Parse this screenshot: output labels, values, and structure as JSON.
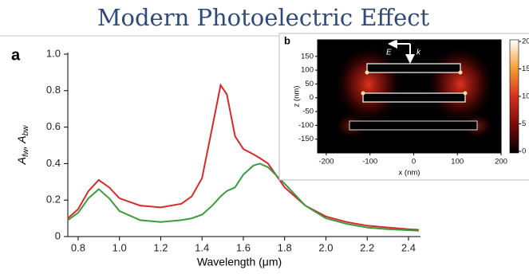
{
  "title": "Modern Photoelectric Effect",
  "chart_data": [
    {
      "type": "line",
      "panel": "a",
      "xlabel": "Wavelength (μm)",
      "ylabel": [
        "A",
        "fw",
        ", A",
        "bw"
      ],
      "x": [
        0.75,
        0.8,
        0.85,
        0.9,
        0.95,
        1.0,
        1.1,
        1.2,
        1.3,
        1.35,
        1.4,
        1.45,
        1.49,
        1.52,
        1.56,
        1.6,
        1.65,
        1.68,
        1.72,
        1.8,
        1.9,
        2.0,
        2.1,
        2.2,
        2.3,
        2.4,
        2.45
      ],
      "series": [
        {
          "color": "#d42a2a",
          "values": [
            0.1,
            0.15,
            0.25,
            0.31,
            0.27,
            0.21,
            0.17,
            0.16,
            0.18,
            0.22,
            0.32,
            0.6,
            0.83,
            0.78,
            0.55,
            0.48,
            0.45,
            0.43,
            0.4,
            0.27,
            0.17,
            0.11,
            0.08,
            0.06,
            0.05,
            0.04,
            0.037
          ]
        },
        {
          "color": "#3c9a40",
          "values": [
            0.09,
            0.13,
            0.21,
            0.26,
            0.21,
            0.14,
            0.09,
            0.08,
            0.09,
            0.1,
            0.12,
            0.17,
            0.22,
            0.25,
            0.27,
            0.34,
            0.39,
            0.4,
            0.38,
            0.29,
            0.17,
            0.1,
            0.07,
            0.05,
            0.04,
            0.035,
            0.032
          ]
        }
      ],
      "xlim": [
        0.75,
        2.46
      ],
      "xticks": [
        0.8,
        {
          "value": 1,
          "label": "1.0"
        },
        1.2,
        1.4,
        1.6,
        1.8,
        {
          "value": 2,
          "label": "2.0"
        },
        2.2,
        2.4
      ],
      "ylim": [
        0,
        1
      ],
      "yticks": [
        0,
        0.2,
        0.4,
        0.6,
        0.8,
        {
          "value": 1,
          "label": "1.0"
        }
      ]
    },
    {
      "type": "heatmap",
      "panel": "b",
      "xlabel": "x (nm)",
      "ylabel": "z (nm)",
      "xlim": [
        -220,
        200
      ],
      "xticks": [
        -200,
        -100,
        0,
        100,
        200
      ],
      "ylim": [
        -200,
        210
      ],
      "yticks": [
        -150,
        -100,
        -50,
        0,
        50,
        100,
        150
      ],
      "clim": [
        0,
        20
      ],
      "cticks": [
        0,
        5,
        10,
        15,
        20
      ],
      "colormap": [
        "#000000",
        "#7a0a0a",
        "#d8301e",
        "#f4a030",
        "#ffffff"
      ],
      "annotations": [
        "E",
        "k"
      ]
    }
  ]
}
